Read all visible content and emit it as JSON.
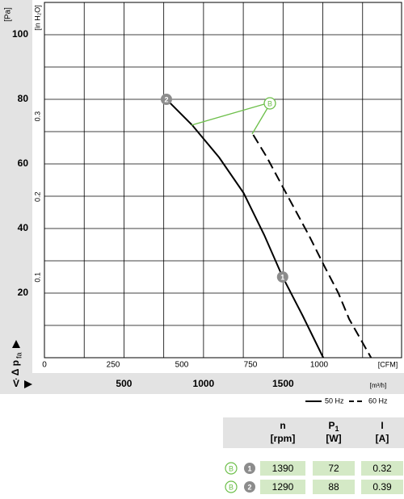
{
  "chart_data": {
    "type": "line",
    "y_unit": "[Pa]",
    "y2_label": "[in H₂O]",
    "y_label": "Δ p",
    "y_label_sub": "fa",
    "x_label": "[CFM]",
    "x2_symbol": "V̇",
    "x2_label": "[m³/h]",
    "xlim": [
      0,
      1300
    ],
    "xticks": [
      0,
      250,
      500,
      750,
      1000
    ],
    "x2lim": [
      0,
      2245
    ],
    "x2ticks": [
      500,
      1000,
      1500
    ],
    "x2grid": [
      250,
      500,
      750,
      1000,
      1250,
      1500,
      1750,
      2000
    ],
    "ylim": [
      0,
      110
    ],
    "yticks": [
      20,
      40,
      60,
      80,
      100
    ],
    "ygrid": [
      10,
      20,
      30,
      40,
      50,
      60,
      70,
      80,
      90,
      100
    ],
    "y2lim": [
      0,
      0.4416
    ],
    "y2ticks": [
      0.1,
      0.2,
      0.3
    ],
    "series": [
      {
        "name": "50 Hz",
        "color": "#000000",
        "dashed": false,
        "x": [
          444,
          538,
          636,
          725,
          800,
          867,
          940,
          1015
        ],
        "values": [
          80,
          72,
          62,
          51,
          38,
          25,
          13,
          0
        ]
      },
      {
        "name": "60 Hz",
        "color": "#000000",
        "dashed": true,
        "x": [
          760,
          810,
          873,
          962,
          1021,
          1070,
          1109,
          1189
        ],
        "values": [
          69,
          62,
          52,
          38,
          28,
          20,
          12,
          0
        ]
      }
    ],
    "points": [
      {
        "label": "1",
        "x": 867,
        "y": 25
      },
      {
        "label": "2",
        "x": 444,
        "y": 80
      }
    ],
    "annotation": "B"
  },
  "table": {
    "headers": [
      {
        "name": "n",
        "unit": "[rpm]"
      },
      {
        "name": "P",
        "sub": "1",
        "unit": "[W]"
      },
      {
        "name": "I",
        "unit": "[A]"
      }
    ],
    "rows": [
      {
        "curve": "B",
        "point": "1",
        "cells": [
          "1390",
          "72",
          "0.32"
        ]
      },
      {
        "curve": "B",
        "point": "2",
        "cells": [
          "1290",
          "88",
          "0.39"
        ]
      }
    ]
  }
}
